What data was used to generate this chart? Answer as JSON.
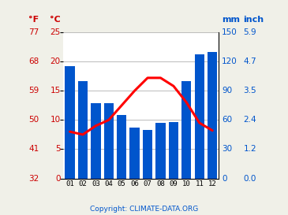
{
  "months": [
    "01",
    "02",
    "03",
    "04",
    "05",
    "06",
    "07",
    "08",
    "09",
    "10",
    "11",
    "12"
  ],
  "precipitation_mm": [
    115,
    100,
    77,
    77,
    65,
    52,
    50,
    57,
    58,
    100,
    127,
    130
  ],
  "temperature_c": [
    8.0,
    7.5,
    9.0,
    10.0,
    12.5,
    15.0,
    17.2,
    17.2,
    15.8,
    13.0,
    9.5,
    8.2
  ],
  "bar_color": "#0055cc",
  "line_color": "#ff0000",
  "left_f_ticks": [
    32,
    41,
    50,
    59,
    68,
    77
  ],
  "left_c_ticks": [
    0,
    5,
    10,
    15,
    20,
    25
  ],
  "right_mm_ticks": [
    0,
    30,
    60,
    90,
    120,
    150
  ],
  "right_inch_ticks": [
    "0.0",
    "1.2",
    "2.4",
    "3.5",
    "4.7",
    "5.9"
  ],
  "celsius_min": 0,
  "celsius_max": 25,
  "mm_min": 0,
  "mm_max": 150,
  "copyright_text": "Copyright: CLIMATE-DATA.ORG",
  "copyright_color": "#0055cc",
  "label_color_left": "#cc0000",
  "label_color_right": "#0055cc",
  "plot_bg": "#ffffff",
  "fig_bg": "#f0f0e8",
  "grid_color": "#bbbbbb",
  "header_f": "°F",
  "header_c": "°C",
  "header_mm": "mm",
  "header_inch": "inch"
}
